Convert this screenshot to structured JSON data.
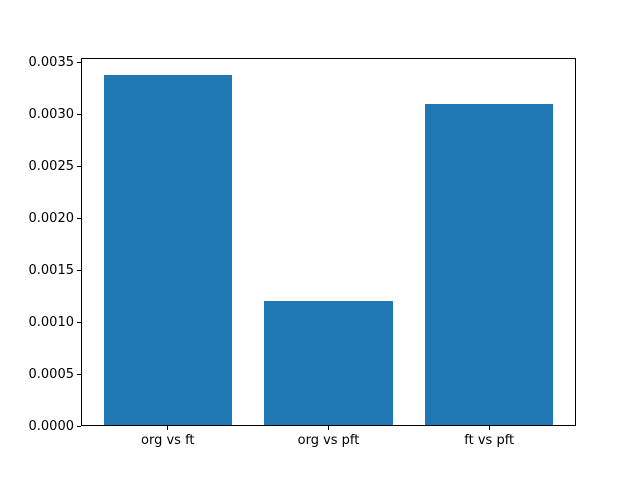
{
  "figure": {
    "background": "#ffffff"
  },
  "chart_data": {
    "type": "bar",
    "title": "",
    "xlabel": "",
    "ylabel": "",
    "categories": [
      "org vs ft",
      "org vs pft",
      "ft vs pft"
    ],
    "values": [
      0.003375,
      0.001205,
      0.003096
    ],
    "ylim": [
      0,
      0.00354
    ],
    "ytick_values": [
      0.0,
      0.0005,
      0.001,
      0.0015,
      0.002,
      0.0025,
      0.003,
      0.0035
    ],
    "ytick_labels": [
      "0.0000",
      "0.0005",
      "0.0010",
      "0.0015",
      "0.0020",
      "0.0025",
      "0.0030",
      "0.0035"
    ],
    "bar_color": "#1f77b4",
    "axis_color": "#000000",
    "text_color": "#000000",
    "bar_width_fraction": 0.8,
    "grid": false,
    "legend": null
  }
}
